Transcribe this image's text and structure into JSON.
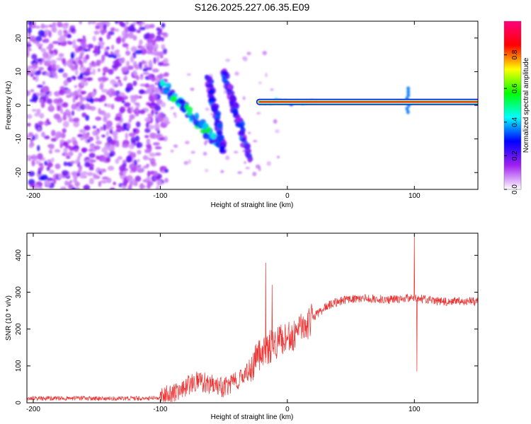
{
  "chart_data": [
    {
      "type": "heatmap",
      "title": "S126.2025.227.06.35.E09",
      "xlabel": "Height of straight line (km)",
      "ylabel": "Frequency (Hz)",
      "xlim": [
        -205,
        150
      ],
      "ylim": [
        -25,
        25
      ],
      "x_ticks": [
        "-200",
        "-100",
        "0",
        "100"
      ],
      "x_tick_values": [
        -200,
        -100,
        0,
        100
      ],
      "y_ticks": [
        "20",
        "10",
        "0",
        "-10",
        "-20"
      ],
      "y_tick_values": [
        20,
        10,
        0,
        -10,
        -20
      ],
      "colorbar": {
        "label": "Normalized spectral amplitude",
        "range": [
          0,
          1
        ],
        "ticks": [
          "0.0",
          "0.2",
          "0.4",
          "0.6",
          "0.8"
        ],
        "tick_values": [
          0.0,
          0.2,
          0.4,
          0.6,
          0.8
        ],
        "colors": [
          "#ffffff",
          "#a020f0",
          "#0000ff",
          "#00ffff",
          "#00ff00",
          "#ffff00",
          "#ff0000",
          "#ff0080"
        ]
      },
      "features": [
        {
          "name": "scattered noise",
          "x_range": [
            -205,
            -95
          ],
          "freq_range": [
            -25,
            25
          ],
          "amplitude": 0.15
        },
        {
          "name": "descending streak 1",
          "x": [
            -100,
            -55
          ],
          "freq": [
            7,
            -11
          ],
          "amplitude": 0.4
        },
        {
          "name": "descending streak 2",
          "x": [
            -62,
            -50
          ],
          "freq": [
            8,
            -14
          ],
          "amplitude": 0.25
        },
        {
          "name": "descending streak 3",
          "x": [
            -50,
            -30
          ],
          "freq": [
            10,
            -15
          ],
          "amplitude": 0.25
        },
        {
          "name": "carrier line",
          "x": [
            -22,
            150
          ],
          "freq": [
            1,
            1
          ],
          "amplitude": 0.95
        },
        {
          "name": "spike at 95 km",
          "x": [
            95,
            95
          ],
          "freq": [
            -2,
            5
          ],
          "amplitude": 0.35
        }
      ]
    },
    {
      "type": "line",
      "xlabel": "Height of straight line (km)",
      "ylabel": "SNR (10 * v/v)",
      "xlim": [
        -205,
        150
      ],
      "ylim": [
        0,
        460
      ],
      "x_ticks": [
        "-200",
        "-100",
        "0",
        "100"
      ],
      "x_tick_values": [
        -200,
        -100,
        0,
        100
      ],
      "y_ticks": [
        "0",
        "100",
        "200",
        "300",
        "400"
      ],
      "y_tick_values": [
        0,
        100,
        200,
        300,
        400
      ],
      "line_color": "#ee3333",
      "x": [
        -205,
        -150,
        -110,
        -100,
        -90,
        -80,
        -70,
        -60,
        -50,
        -40,
        -30,
        -20,
        -10,
        0,
        10,
        20,
        30,
        40,
        50,
        60,
        70,
        80,
        90,
        95,
        100,
        105,
        110,
        120,
        130,
        140,
        150
      ],
      "y": [
        12,
        12,
        12,
        14,
        25,
        45,
        60,
        50,
        40,
        60,
        90,
        140,
        160,
        175,
        195,
        230,
        260,
        275,
        282,
        283,
        282,
        280,
        280,
        285,
        285,
        282,
        278,
        275,
        275,
        275,
        275
      ],
      "spikes": [
        {
          "x": -17,
          "y": 380
        },
        {
          "x": -12,
          "y": 320
        },
        {
          "x": 100,
          "y": 455
        },
        {
          "x": 102,
          "y": 85
        }
      ]
    }
  ]
}
